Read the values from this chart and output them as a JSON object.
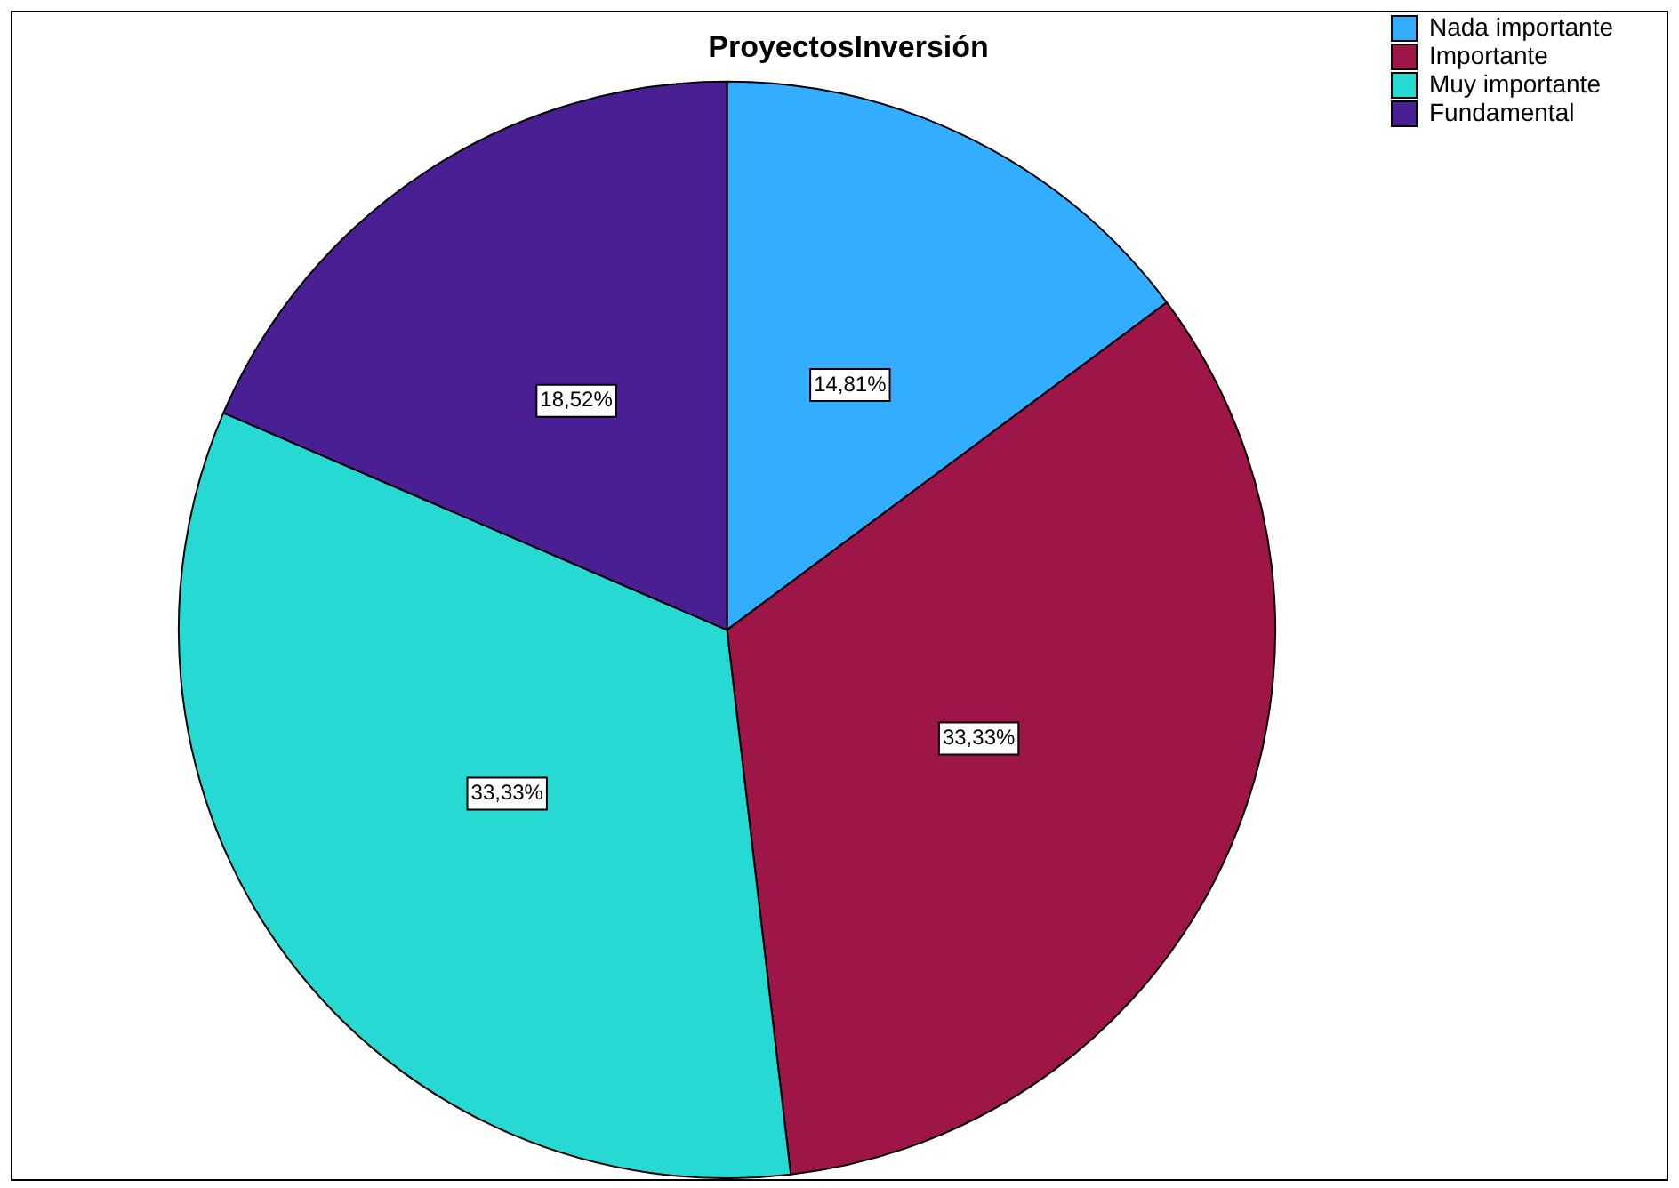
{
  "chart_data": {
    "type": "pie",
    "title": "ProyectosInversión",
    "categories": [
      "Nada importante",
      "Importante",
      "Muy importante",
      "Fundamental"
    ],
    "values": [
      14.81,
      33.33,
      33.33,
      18.52
    ],
    "value_labels": [
      "14,81%",
      "33,33%",
      "33,33%",
      "18,52%"
    ],
    "colors": [
      "#33adff",
      "#9e1648",
      "#26d9d3",
      "#4b1f94"
    ],
    "legend": "top right"
  }
}
